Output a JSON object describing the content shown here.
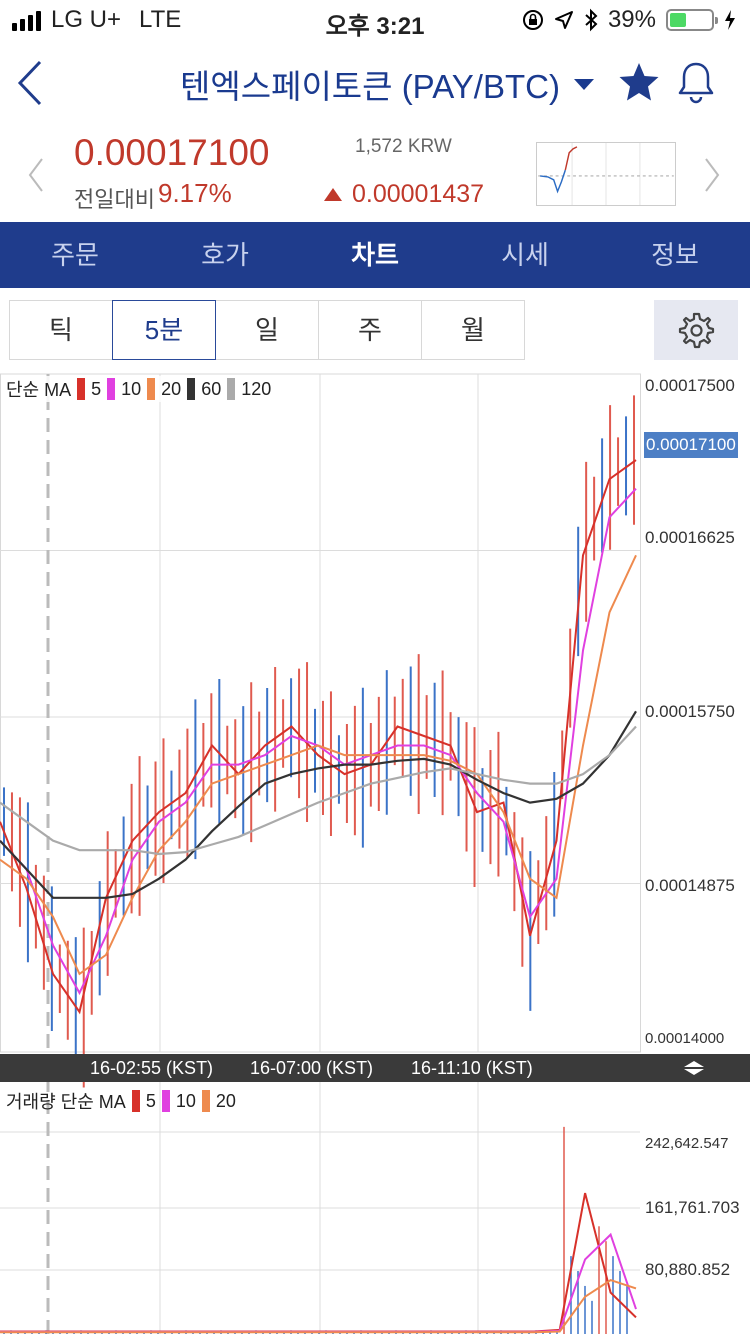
{
  "status": {
    "carrier": "LG U+",
    "network": "LTE",
    "time": "오후 3:21",
    "battery": "39%",
    "battery_level": 0.39
  },
  "header": {
    "title": "텐엑스페이토큰 (PAY/BTC)"
  },
  "price": {
    "current": "0.00017100",
    "diff_label": "전일대비",
    "diff_pct": "9.17%",
    "krw": "1,572 KRW",
    "change": "0.00001437"
  },
  "tabs": [
    {
      "label": "주문"
    },
    {
      "label": "호가"
    },
    {
      "label": "차트",
      "active": true
    },
    {
      "label": "시세"
    },
    {
      "label": "정보"
    }
  ],
  "periods": [
    {
      "label": "틱"
    },
    {
      "label": "5분",
      "active": true
    },
    {
      "label": "일"
    },
    {
      "label": "주"
    },
    {
      "label": "월"
    }
  ],
  "price_chart": {
    "ma_label": "단순 MA",
    "ma": [
      {
        "period": "5",
        "color": "#d7312a"
      },
      {
        "period": "10",
        "color": "#e040e0"
      },
      {
        "period": "20",
        "color": "#ee8a4e"
      },
      {
        "period": "60",
        "color": "#333333"
      },
      {
        "period": "120",
        "color": "#aaaaaa"
      }
    ],
    "y_ticks": [
      "0.00017500",
      "0.00016625",
      "0.00015750",
      "0.00014875",
      "0.00014000"
    ],
    "current_label": "0.00017100",
    "time_labels": [
      "16-02:55 (KST)",
      "16-07:00 (KST)",
      "16-11:10 (KST)"
    ]
  },
  "volume_chart": {
    "label": "거래량 단순 MA",
    "ma": [
      {
        "period": "5",
        "color": "#d7312a"
      },
      {
        "period": "10",
        "color": "#e040e0"
      },
      {
        "period": "20",
        "color": "#ee8a4e"
      }
    ],
    "y_ticks": [
      "242,642.547",
      "161,761.703",
      "80,880.852"
    ]
  },
  "chart_data": [
    {
      "type": "line",
      "ylim": [
        0.00014,
        0.000175
      ],
      "series": [
        {
          "name": "5",
          "values": [
            0.000152,
            0.0001485,
            0.000144,
            0.000142,
            0.000148,
            0.000151,
            0.0001525,
            0.0001535,
            0.000156,
            0.0001545,
            0.000156,
            0.000157,
            0.0001555,
            0.0001545,
            0.000155,
            0.000157,
            0.0001565,
            0.000156,
            0.0001525,
            0.000153,
            0.000146,
            0.000151,
            0.000166,
            0.00017,
            0.000171
          ]
        },
        {
          "name": "10",
          "values": [
            0.000151,
            0.0001495,
            0.0001455,
            0.000143,
            0.000146,
            0.00015,
            0.000152,
            0.000153,
            0.000155,
            0.000155,
            0.0001555,
            0.0001565,
            0.000156,
            0.000155,
            0.0001555,
            0.000156,
            0.000156,
            0.0001555,
            0.0001535,
            0.000152,
            0.000147,
            0.000149,
            0.000161,
            0.000168,
            0.0001695
          ]
        },
        {
          "name": "20",
          "values": [
            0.00015,
            0.000149,
            0.000147,
            0.000144,
            0.000145,
            0.000148,
            0.0001505,
            0.000152,
            0.000154,
            0.0001545,
            0.000155,
            0.0001555,
            0.000156,
            0.0001555,
            0.0001555,
            0.0001555,
            0.0001555,
            0.0001552,
            0.0001545,
            0.0001525,
            0.000149,
            0.000148,
            0.000156,
            0.000163,
            0.000166
          ]
        },
        {
          "name": "60",
          "values": [
            0.000151,
            0.0001495,
            0.000148,
            0.000148,
            0.000148,
            0.0001482,
            0.000149,
            0.00015,
            0.0001515,
            0.0001528,
            0.000154,
            0.0001545,
            0.0001548,
            0.000155,
            0.000155,
            0.0001552,
            0.0001553,
            0.000155,
            0.0001542,
            0.0001535,
            0.000153,
            0.0001532,
            0.000154,
            0.0001555,
            0.0001578
          ]
        },
        {
          "name": "120",
          "values": [
            0.000153,
            0.000152,
            0.000151,
            0.0001505,
            0.0001505,
            0.0001505,
            0.0001503,
            0.0001504,
            0.0001508,
            0.0001512,
            0.0001518,
            0.0001524,
            0.000153,
            0.0001535,
            0.000154,
            0.0001543,
            0.0001546,
            0.0001548,
            0.0001545,
            0.0001542,
            0.000154,
            0.000154,
            0.0001545,
            0.0001555,
            0.000157
          ]
        }
      ]
    },
    {
      "type": "bar",
      "ylim": [
        0,
        280000
      ],
      "series": [
        {
          "name": "5",
          "values": [
            3000,
            3000,
            3000,
            3000,
            3000,
            3000,
            3000,
            3000,
            3000,
            3000,
            3000,
            3000,
            3000,
            3000,
            3000,
            3000,
            3000,
            3000,
            3000,
            3000,
            3000,
            3000,
            5000,
            170000,
            50000,
            20000
          ]
        },
        {
          "name": "10",
          "values": [
            2500,
            2500,
            2500,
            2500,
            2500,
            2500,
            2500,
            2500,
            2500,
            2500,
            2500,
            2500,
            2500,
            2500,
            2500,
            2500,
            2500,
            2500,
            2500,
            2500,
            2500,
            2500,
            4000,
            90000,
            120000,
            30000
          ]
        },
        {
          "name": "20",
          "values": [
            2000,
            2000,
            2000,
            2000,
            2000,
            2000,
            2000,
            2000,
            2000,
            2000,
            2000,
            2000,
            2000,
            2000,
            2000,
            2000,
            2000,
            2000,
            2000,
            2000,
            2000,
            2000,
            3000,
            45000,
            65000,
            55000
          ]
        }
      ]
    }
  ]
}
